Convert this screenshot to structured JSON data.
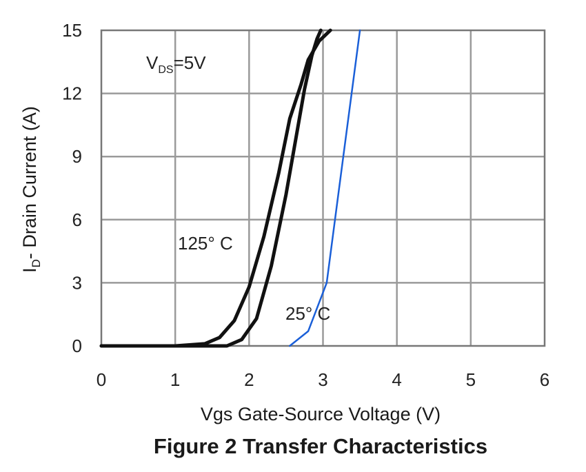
{
  "chart_data": {
    "type": "line",
    "title": "Figure 2 Transfer Characteristics",
    "xlabel": "Vgs Gate-Source Voltage (V)",
    "ylabel": {
      "main": "I",
      "sub": "D",
      "rest": "- Drain Current (A)"
    },
    "xlim": [
      0,
      6
    ],
    "ylim": [
      0,
      15
    ],
    "xticks": [
      0,
      1,
      2,
      3,
      4,
      5,
      6
    ],
    "yticks": [
      0,
      3,
      6,
      9,
      12,
      15
    ],
    "grid": true,
    "annotations": {
      "condition": {
        "main": "V",
        "sub": "DS",
        "rest": "=5V"
      },
      "label_125": "125° C",
      "label_25": "25° C"
    },
    "series": [
      {
        "name": "125° C",
        "color": "#111111",
        "x": [
          0,
          1.0,
          1.4,
          1.6,
          1.8,
          2.0,
          2.2,
          2.4,
          2.55,
          2.7,
          2.8,
          2.95,
          3.1
        ],
        "y": [
          0,
          0,
          0.1,
          0.4,
          1.2,
          2.8,
          5.2,
          8.2,
          10.8,
          12.4,
          13.6,
          14.5,
          15
        ]
      },
      {
        "name": "25° C",
        "color": "#111111",
        "x": [
          0,
          1.7,
          1.9,
          2.1,
          2.3,
          2.5,
          2.65,
          2.75,
          2.85,
          2.92,
          2.97
        ],
        "y": [
          0,
          0,
          0.3,
          1.3,
          3.8,
          7.2,
          10.2,
          12.2,
          13.8,
          14.6,
          15
        ]
      },
      {
        "name": "",
        "color": "#1a5fd8",
        "x": [
          2.55,
          2.8,
          3.05,
          3.2,
          3.35,
          3.5
        ],
        "y": [
          0,
          0.7,
          3.0,
          7.0,
          11.0,
          15
        ]
      }
    ]
  }
}
